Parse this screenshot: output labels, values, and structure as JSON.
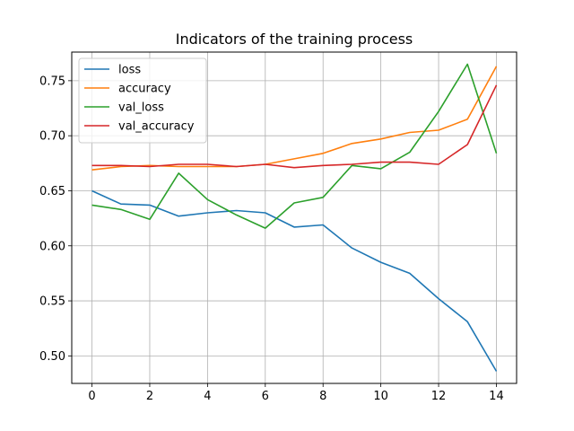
{
  "chart_data": {
    "type": "line",
    "title": "Indicators of the training process",
    "xlabel": "",
    "ylabel": "",
    "xlim": [
      -0.7,
      14.7
    ],
    "ylim": [
      0.475,
      0.776
    ],
    "x_ticks": [
      0,
      2,
      4,
      6,
      8,
      10,
      12,
      14
    ],
    "y_ticks": [
      0.5,
      0.55,
      0.6,
      0.65,
      0.7,
      0.75
    ],
    "y_tick_labels": [
      "0.50",
      "0.55",
      "0.60",
      "0.65",
      "0.70",
      "0.75"
    ],
    "grid": true,
    "legend_position": "upper-left",
    "x": [
      0,
      1,
      2,
      3,
      4,
      5,
      6,
      7,
      8,
      9,
      10,
      11,
      12,
      13,
      14
    ],
    "series": [
      {
        "name": "loss",
        "color": "#1f77b4",
        "values": [
          0.65,
          0.638,
          0.637,
          0.627,
          0.63,
          0.632,
          0.63,
          0.617,
          0.619,
          0.598,
          0.585,
          0.575,
          0.552,
          0.531,
          0.486
        ]
      },
      {
        "name": "accuracy",
        "color": "#ff7f0e",
        "values": [
          0.669,
          0.672,
          0.673,
          0.672,
          0.672,
          0.672,
          0.674,
          0.679,
          0.684,
          0.693,
          0.697,
          0.703,
          0.705,
          0.715,
          0.763
        ]
      },
      {
        "name": "val_loss",
        "color": "#2ca02c",
        "values": [
          0.637,
          0.633,
          0.624,
          0.666,
          0.642,
          0.628,
          0.616,
          0.639,
          0.644,
          0.673,
          0.67,
          0.685,
          0.722,
          0.765,
          0.684
        ]
      },
      {
        "name": "val_accuracy",
        "color": "#d62728",
        "values": [
          0.673,
          0.673,
          0.672,
          0.674,
          0.674,
          0.672,
          0.674,
          0.671,
          0.673,
          0.674,
          0.676,
          0.676,
          0.674,
          0.692,
          0.746
        ]
      }
    ]
  }
}
